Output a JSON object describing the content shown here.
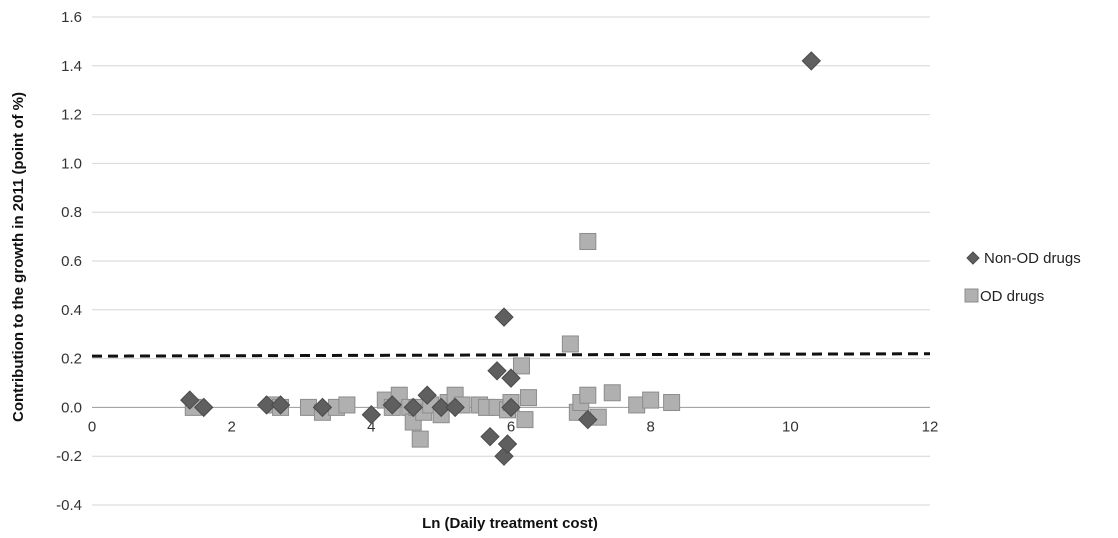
{
  "chart_data": {
    "type": "scatter",
    "title": "",
    "xlabel": "Ln (Daily treatment cost)",
    "ylabel": "Contribution to the growth in 2011 (point of %)",
    "xlim": [
      0,
      12
    ],
    "ylim": [
      -0.4,
      1.6
    ],
    "x_ticks": [
      0,
      2,
      4,
      6,
      8,
      10,
      12
    ],
    "y_ticks": [
      -0.4,
      -0.2,
      0.0,
      0.2,
      0.4,
      0.6,
      0.8,
      1.0,
      1.2,
      1.4,
      1.6
    ],
    "x_tick_labels": [
      "0",
      "2",
      "4",
      "6",
      "8",
      "10",
      "12"
    ],
    "y_tick_labels": [
      "-0.4",
      "-0.2",
      "0.0",
      "0.2",
      "0.4",
      "0.6",
      "0.8",
      "1.0",
      "1.2",
      "1.4",
      "1.6"
    ],
    "grid": "horizontal",
    "legend_position": "right",
    "reference_line": {
      "style": "dashed",
      "from": [
        0,
        0.21
      ],
      "to": [
        12,
        0.22
      ]
    },
    "series": [
      {
        "name": "Non-OD drugs",
        "marker": "diamond",
        "color": "#5f5f5f",
        "points": [
          [
            1.4,
            0.03
          ],
          [
            1.6,
            0.0
          ],
          [
            2.5,
            0.01
          ],
          [
            2.7,
            0.01
          ],
          [
            3.3,
            0.0
          ],
          [
            4.0,
            -0.03
          ],
          [
            4.3,
            0.01
          ],
          [
            4.6,
            0.0
          ],
          [
            4.8,
            0.05
          ],
          [
            5.0,
            0.0
          ],
          [
            5.2,
            0.0
          ],
          [
            5.7,
            -0.12
          ],
          [
            5.8,
            0.15
          ],
          [
            5.9,
            -0.2
          ],
          [
            5.95,
            -0.15
          ],
          [
            6.0,
            0.0
          ],
          [
            5.9,
            0.37
          ],
          [
            6.0,
            0.12
          ],
          [
            7.1,
            -0.05
          ],
          [
            10.3,
            1.42
          ]
        ]
      },
      {
        "name": "OD drugs",
        "marker": "square",
        "color": "#b0b0b0",
        "points": [
          [
            1.45,
            0.0
          ],
          [
            2.6,
            0.01
          ],
          [
            2.7,
            0.0
          ],
          [
            3.1,
            0.0
          ],
          [
            3.3,
            -0.02
          ],
          [
            3.5,
            0.0
          ],
          [
            3.65,
            0.01
          ],
          [
            4.2,
            0.03
          ],
          [
            4.3,
            0.0
          ],
          [
            4.4,
            0.05
          ],
          [
            4.55,
            0.0
          ],
          [
            4.6,
            -0.06
          ],
          [
            4.65,
            0.0
          ],
          [
            4.7,
            -0.13
          ],
          [
            4.75,
            -0.02
          ],
          [
            4.85,
            0.01
          ],
          [
            5.0,
            -0.03
          ],
          [
            5.1,
            0.02
          ],
          [
            5.2,
            0.05
          ],
          [
            5.3,
            0.01
          ],
          [
            5.55,
            0.01
          ],
          [
            5.65,
            0.0
          ],
          [
            5.8,
            0.0
          ],
          [
            5.95,
            -0.01
          ],
          [
            6.0,
            0.02
          ],
          [
            6.15,
            0.17
          ],
          [
            6.2,
            -0.05
          ],
          [
            6.25,
            0.04
          ],
          [
            6.85,
            0.26
          ],
          [
            6.95,
            -0.02
          ],
          [
            7.0,
            0.02
          ],
          [
            7.1,
            0.05
          ],
          [
            7.1,
            0.68
          ],
          [
            7.25,
            -0.04
          ],
          [
            7.45,
            0.06
          ],
          [
            7.8,
            0.01
          ],
          [
            8.0,
            0.03
          ],
          [
            8.3,
            0.02
          ]
        ]
      }
    ]
  }
}
